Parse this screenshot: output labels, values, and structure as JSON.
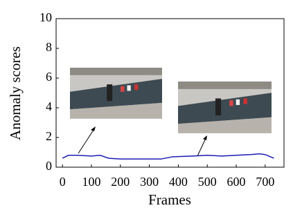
{
  "chart_data": {
    "type": "line",
    "x_label": "Frames",
    "y_label": "Anomaly scores",
    "x": [
      0,
      20,
      50,
      100,
      130,
      160,
      200,
      250,
      300,
      340,
      380,
      450,
      500,
      550,
      600,
      650,
      680,
      700,
      730
    ],
    "series": [
      {
        "color": "#1a1ab4",
        "values": [
          0.6,
          0.8,
          0.8,
          0.75,
          0.8,
          0.6,
          0.55,
          0.55,
          0.55,
          0.55,
          0.7,
          0.75,
          0.8,
          0.75,
          0.8,
          0.85,
          0.9,
          0.85,
          0.6
        ]
      }
    ],
    "xlim": [
      -22,
      765
    ],
    "ylim": [
      0,
      10
    ],
    "xticks": [
      0,
      100,
      200,
      300,
      400,
      500,
      600,
      700
    ],
    "yticks": [
      0,
      2,
      4,
      6,
      8,
      10
    ]
  }
}
